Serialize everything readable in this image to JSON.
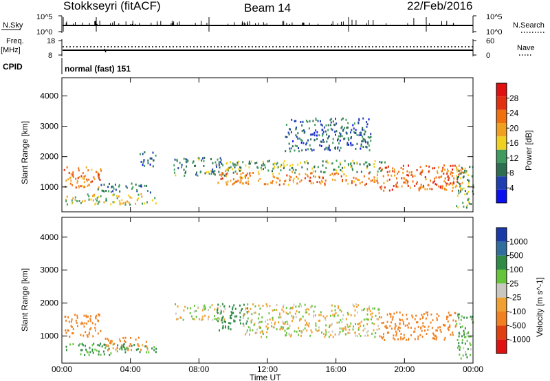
{
  "header": {
    "station": "Stokkseyri (fitACF)",
    "beam": "Beam 14",
    "date": "22/Feb/2016"
  },
  "status_panels": {
    "nsky_label": "N.Sky",
    "nsky_tick_top": "10^5",
    "nsky_tick_bottom": "10^0",
    "nsearch_label": "N.Search",
    "nsearch_tick_top": "10^5",
    "nsearch_tick_bottom": "10^0",
    "freq_label": "Freq.",
    "freq_unit": "[MHz]",
    "freq_tick_top": "18",
    "freq_tick_bottom": "8",
    "nave_label": "Nave",
    "nave_tick_top": "60",
    "nave_tick_bottom": "0",
    "cpid_label": "CPID",
    "cpid_value": "normal (fast) 151"
  },
  "colors": {
    "power_scale": [
      "#0a10f0",
      "#1f3fb0",
      "#2e6e50",
      "#3f9a60",
      "#f0d020",
      "#f0a020",
      "#f07010",
      "#e03010",
      "#e01010"
    ],
    "velocity_scale": [
      "#1a3aa8",
      "#2f6d9c",
      "#2f8a46",
      "#65c43a",
      "#c8c8c0",
      "#f0a030",
      "#f08020",
      "#e04010",
      "#e01010"
    ],
    "ground_scatter": "#c8c8c0"
  },
  "chart_data": [
    {
      "type": "heatmap",
      "panel": "power",
      "ylabel": "Slant Range [km]",
      "ylim": [
        180,
        4600
      ],
      "yticks": [
        "1000",
        "2000",
        "3000",
        "4000"
      ],
      "xticks": [
        "00:00",
        "04:00",
        "08:00",
        "12:00",
        "16:00",
        "20:00",
        "00:00"
      ],
      "xlim_hours": [
        0,
        24
      ],
      "colorbar_label": "Power [dB]",
      "colorbar_ticks": [
        "4",
        "8",
        "12",
        "16",
        "20",
        "24",
        "28"
      ],
      "colorbar_range": [
        0,
        32
      ],
      "regions": [
        {
          "t0": 0.1,
          "t1": 2.3,
          "r0": 1000,
          "r1": 1700,
          "value": 22
        },
        {
          "t0": 0.2,
          "t1": 5.5,
          "r0": 450,
          "r1": 800,
          "value": 16
        },
        {
          "t0": 2.0,
          "t1": 5.2,
          "r0": 850,
          "r1": 1150,
          "value": 9
        },
        {
          "t0": 4.5,
          "t1": 5.5,
          "r0": 1700,
          "r1": 2200,
          "value": 8
        },
        {
          "t0": 6.5,
          "t1": 9.5,
          "r0": 1400,
          "r1": 2000,
          "value": 10
        },
        {
          "t0": 9.0,
          "t1": 18.5,
          "r0": 1100,
          "r1": 1500,
          "value": 22
        },
        {
          "t0": 9.5,
          "t1": 19.0,
          "r0": 1500,
          "r1": 1900,
          "value": 13
        },
        {
          "t0": 13.0,
          "t1": 18.0,
          "r0": 2200,
          "r1": 3300,
          "value": 8
        },
        {
          "t0": 18.5,
          "t1": 23.5,
          "r0": 900,
          "r1": 1750,
          "value": 24
        },
        {
          "t0": 23.0,
          "t1": 24.0,
          "r0": 300,
          "r1": 1700,
          "value": 12
        }
      ]
    },
    {
      "type": "heatmap",
      "panel": "velocity",
      "ylabel": "Slant Range [km]",
      "ylim": [
        180,
        4600
      ],
      "yticks": [
        "1000",
        "2000",
        "3000",
        "4000"
      ],
      "xticks": [
        "00:00",
        "04:00",
        "08:00",
        "12:00",
        "16:00",
        "20:00",
        "00:00"
      ],
      "xlim_hours": [
        0,
        24
      ],
      "xlabel": "Time UT",
      "colorbar_label": "Velocity [m s^-1]",
      "colorbar_ticks": [
        "1000",
        "500",
        "100",
        "25",
        "-25",
        "-100",
        "-500",
        "-1000"
      ],
      "regions": [
        {
          "t0": 0.1,
          "t1": 2.3,
          "r0": 1000,
          "r1": 1700,
          "value": -300
        },
        {
          "t0": 0.2,
          "t1": 5.5,
          "r0": 450,
          "r1": 800,
          "value": 150
        },
        {
          "t0": 2.5,
          "t1": 5.0,
          "r0": 600,
          "r1": 1000,
          "value": -150
        },
        {
          "t0": 6.5,
          "t1": 9.5,
          "r0": 1500,
          "r1": 2000,
          "value": 0
        },
        {
          "t0": 9.0,
          "t1": 10.8,
          "r0": 1200,
          "r1": 2000,
          "value": 200
        },
        {
          "t0": 10.5,
          "t1": 18.5,
          "r0": 1000,
          "r1": 2000,
          "value": 0
        },
        {
          "t0": 18.5,
          "t1": 23.0,
          "r0": 900,
          "r1": 1750,
          "value": -300
        },
        {
          "t0": 23.0,
          "t1": 24.0,
          "r0": 300,
          "r1": 1700,
          "value": 100
        }
      ]
    }
  ]
}
